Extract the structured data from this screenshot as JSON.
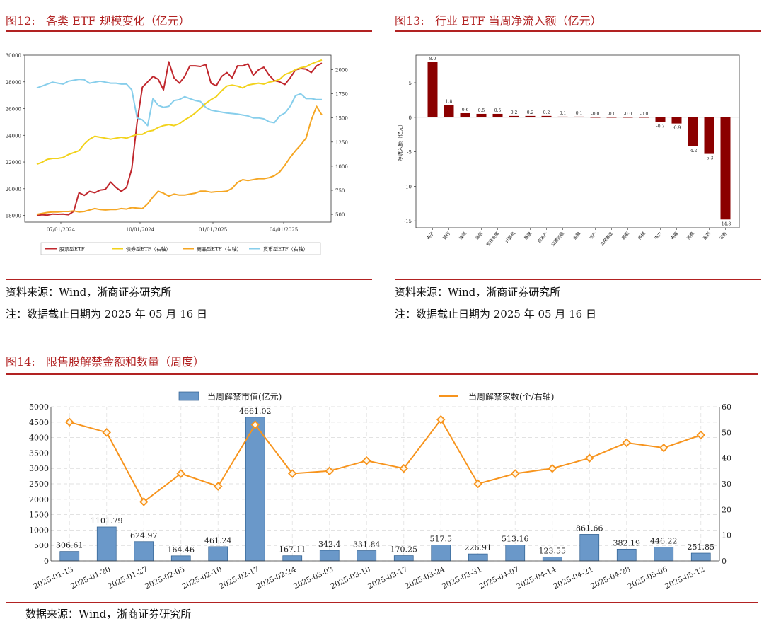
{
  "fig12": {
    "title": "图12:   各类 ETF 规模变化（亿元）",
    "source": "资料来源：Wind，浙商证券研究所",
    "note": "注：数据截止日期为 2025 年 05 月 16 日"
  },
  "fig13": {
    "title": "图13:   行业 ETF 当周净流入额（亿元）",
    "source": "资料来源：Wind，浙商证券研究所",
    "note": "注：数据截止日期为 2025 年 05 月 16 日"
  },
  "fig14": {
    "title": "图14:   限售股解禁金额和数量（周度）",
    "source": "数据来源：Wind，浙商证券研究所"
  },
  "colors": {
    "accent_red": "#b22222",
    "stock_etf": "#c0272d",
    "bond_etf": "#f2d21b",
    "commodity_etf": "#f5a623",
    "money_etf": "#87ceeb",
    "bar_dark_red": "#8b0000",
    "bar_blue": "#6a98c9",
    "line_orange": "#f7941d"
  },
  "chart_data": [
    {
      "id": "etf-scale",
      "type": "line",
      "title": "各类 ETF 规模变化（亿元）",
      "x_ticks": [
        "07/01/2024",
        "10/01/2024",
        "01/01/2025",
        "04/01/2025"
      ],
      "y_left_ticks": [
        "30000",
        "28000",
        "26000",
        "24000",
        "22000",
        "20000",
        "18000"
      ],
      "y_left_range": [
        17500,
        30000
      ],
      "y_right_ticks": [
        "2000",
        "1750",
        "1500",
        "1250",
        "1000",
        "750",
        "500"
      ],
      "y_right_range": [
        420,
        2150
      ],
      "series": [
        {
          "name": "股票型ETF",
          "axis": "left",
          "values": [
            18000,
            18050,
            18020,
            18100,
            18080,
            18100,
            18050,
            18300,
            19700,
            19500,
            19800,
            19700,
            19900,
            19950,
            20500,
            20100,
            19800,
            20100,
            21500,
            25000,
            27600,
            28000,
            28400,
            28200,
            27400,
            29500,
            28300,
            27900,
            28400,
            29200,
            29200,
            29150,
            29300,
            27900,
            27700,
            28400,
            28700,
            28300,
            29200,
            29200,
            29350,
            28500,
            28900,
            29100,
            28500,
            28100,
            28000,
            27800,
            28300,
            28900,
            29000,
            28950,
            28700,
            29200,
            29400
          ]
        },
        {
          "name": "债券型ETF（右轴）",
          "axis": "right",
          "values": [
            1020,
            1040,
            1070,
            1080,
            1080,
            1090,
            1120,
            1140,
            1160,
            1230,
            1280,
            1310,
            1300,
            1290,
            1280,
            1290,
            1300,
            1290,
            1310,
            1330,
            1330,
            1360,
            1370,
            1400,
            1420,
            1430,
            1420,
            1440,
            1480,
            1510,
            1550,
            1600,
            1650,
            1690,
            1720,
            1780,
            1830,
            1840,
            1830,
            1810,
            1840,
            1850,
            1860,
            1850,
            1870,
            1880,
            1900,
            1950,
            1970,
            2000,
            2020,
            2030,
            2060,
            2080,
            2100
          ]
        },
        {
          "name": "商品型ETF（右轴）",
          "axis": "right",
          "values": [
            500,
            510,
            520,
            525,
            525,
            530,
            530,
            535,
            525,
            530,
            545,
            560,
            550,
            545,
            550,
            550,
            560,
            555,
            570,
            565,
            560,
            610,
            680,
            740,
            720,
            690,
            710,
            700,
            700,
            710,
            720,
            740,
            740,
            730,
            735,
            735,
            740,
            770,
            830,
            860,
            850,
            860,
            870,
            870,
            880,
            900,
            940,
            1010,
            1090,
            1160,
            1220,
            1290,
            1480,
            1620,
            1530
          ]
        },
        {
          "name": "货币型ETF（右轴）",
          "axis": "right",
          "values": [
            1810,
            1830,
            1850,
            1870,
            1860,
            1850,
            1880,
            1890,
            1900,
            1895,
            1860,
            1870,
            1880,
            1870,
            1860,
            1860,
            1850,
            1850,
            1790,
            1500,
            1480,
            1420,
            1700,
            1630,
            1610,
            1620,
            1680,
            1690,
            1720,
            1700,
            1680,
            1670,
            1610,
            1580,
            1570,
            1560,
            1550,
            1545,
            1540,
            1530,
            1520,
            1500,
            1500,
            1490,
            1460,
            1450,
            1520,
            1550,
            1620,
            1730,
            1750,
            1700,
            1700,
            1690,
            1690
          ]
        }
      ]
    },
    {
      "id": "industry-etf-flow",
      "type": "bar",
      "title": "行业 ETF 当周净流入额（亿元）",
      "ylabel": "净流入额（亿元）",
      "ylim": [
        -16,
        9
      ],
      "y_ticks": [
        "5",
        "0",
        "-5",
        "-10",
        "-15"
      ],
      "categories": [
        "电子",
        "银行",
        "煤炭",
        "通信",
        "有色金属",
        "计算机",
        "基建",
        "房地产",
        "交通运输",
        "金融",
        "地产",
        "公用事业",
        "周期",
        "传媒",
        "电力",
        "电器",
        "消费",
        "医药",
        "证券"
      ],
      "values": [
        8.0,
        1.8,
        0.6,
        0.5,
        0.5,
        0.2,
        0.2,
        0.2,
        0.1,
        0.1,
        -0.0,
        -0.0,
        -0.0,
        -0.0,
        -0.7,
        -0.9,
        -4.2,
        -5.3,
        -14.8
      ],
      "labels": [
        "8.0",
        "1.8",
        "0.6",
        "0.5",
        "0.5",
        "0.2",
        "0.2",
        "0.2",
        "0.1",
        "0.1",
        "-0.0",
        "-0.0",
        "-0.0",
        "-0.0",
        "-0.7",
        "-0.9",
        "-4.2",
        "-5.3",
        "-14.8"
      ]
    },
    {
      "id": "lockup-expiry",
      "type": "bar+line",
      "title": "限售股解禁金额和数量（周度）",
      "categories": [
        "2025-01-13",
        "2025-01-20",
        "2025-01-27",
        "2025-02-05",
        "2025-02-10",
        "2025-02-17",
        "2025-02-24",
        "2025-03-03",
        "2025-03-10",
        "2025-03-17",
        "2025-03-24",
        "2025-03-31",
        "2025-04-07",
        "2025-04-14",
        "2025-04-21",
        "2025-04-28",
        "2025-05-06",
        "2025-05-12"
      ],
      "series": [
        {
          "name": "当周解禁市值(亿元)",
          "type": "bar",
          "axis": "left",
          "values": [
            306.61,
            1101.79,
            624.97,
            164.46,
            461.24,
            4661.02,
            167.11,
            342.4,
            331.84,
            170.25,
            517.5,
            226.91,
            513.16,
            123.55,
            861.66,
            382.19,
            446.22,
            251.85
          ],
          "labels": [
            "306.61",
            "1101.79",
            "624.97",
            "164.46",
            "461.24",
            "4661.02",
            "167.11",
            "342.4",
            "331.84",
            "170.25",
            "517.5",
            "226.91",
            "513.16",
            "123.55",
            "861.66",
            "382.19",
            "446.22",
            "251.85"
          ]
        },
        {
          "name": "当周解禁家数(个/右轴)",
          "type": "line",
          "axis": "right",
          "values": [
            54,
            50,
            23,
            34,
            29,
            53,
            34,
            35,
            39,
            36,
            55,
            30,
            34,
            36,
            40,
            46,
            44,
            49
          ]
        }
      ],
      "y_left_ticks": [
        "5000",
        "4500",
        "4000",
        "3500",
        "3000",
        "2500",
        "2000",
        "1500",
        "1000",
        "500",
        "0"
      ],
      "y_left_range": [
        0,
        5000
      ],
      "y_right_ticks": [
        "60",
        "50",
        "40",
        "30",
        "20",
        "10",
        "0"
      ],
      "y_right_range": [
        0,
        60
      ]
    }
  ]
}
